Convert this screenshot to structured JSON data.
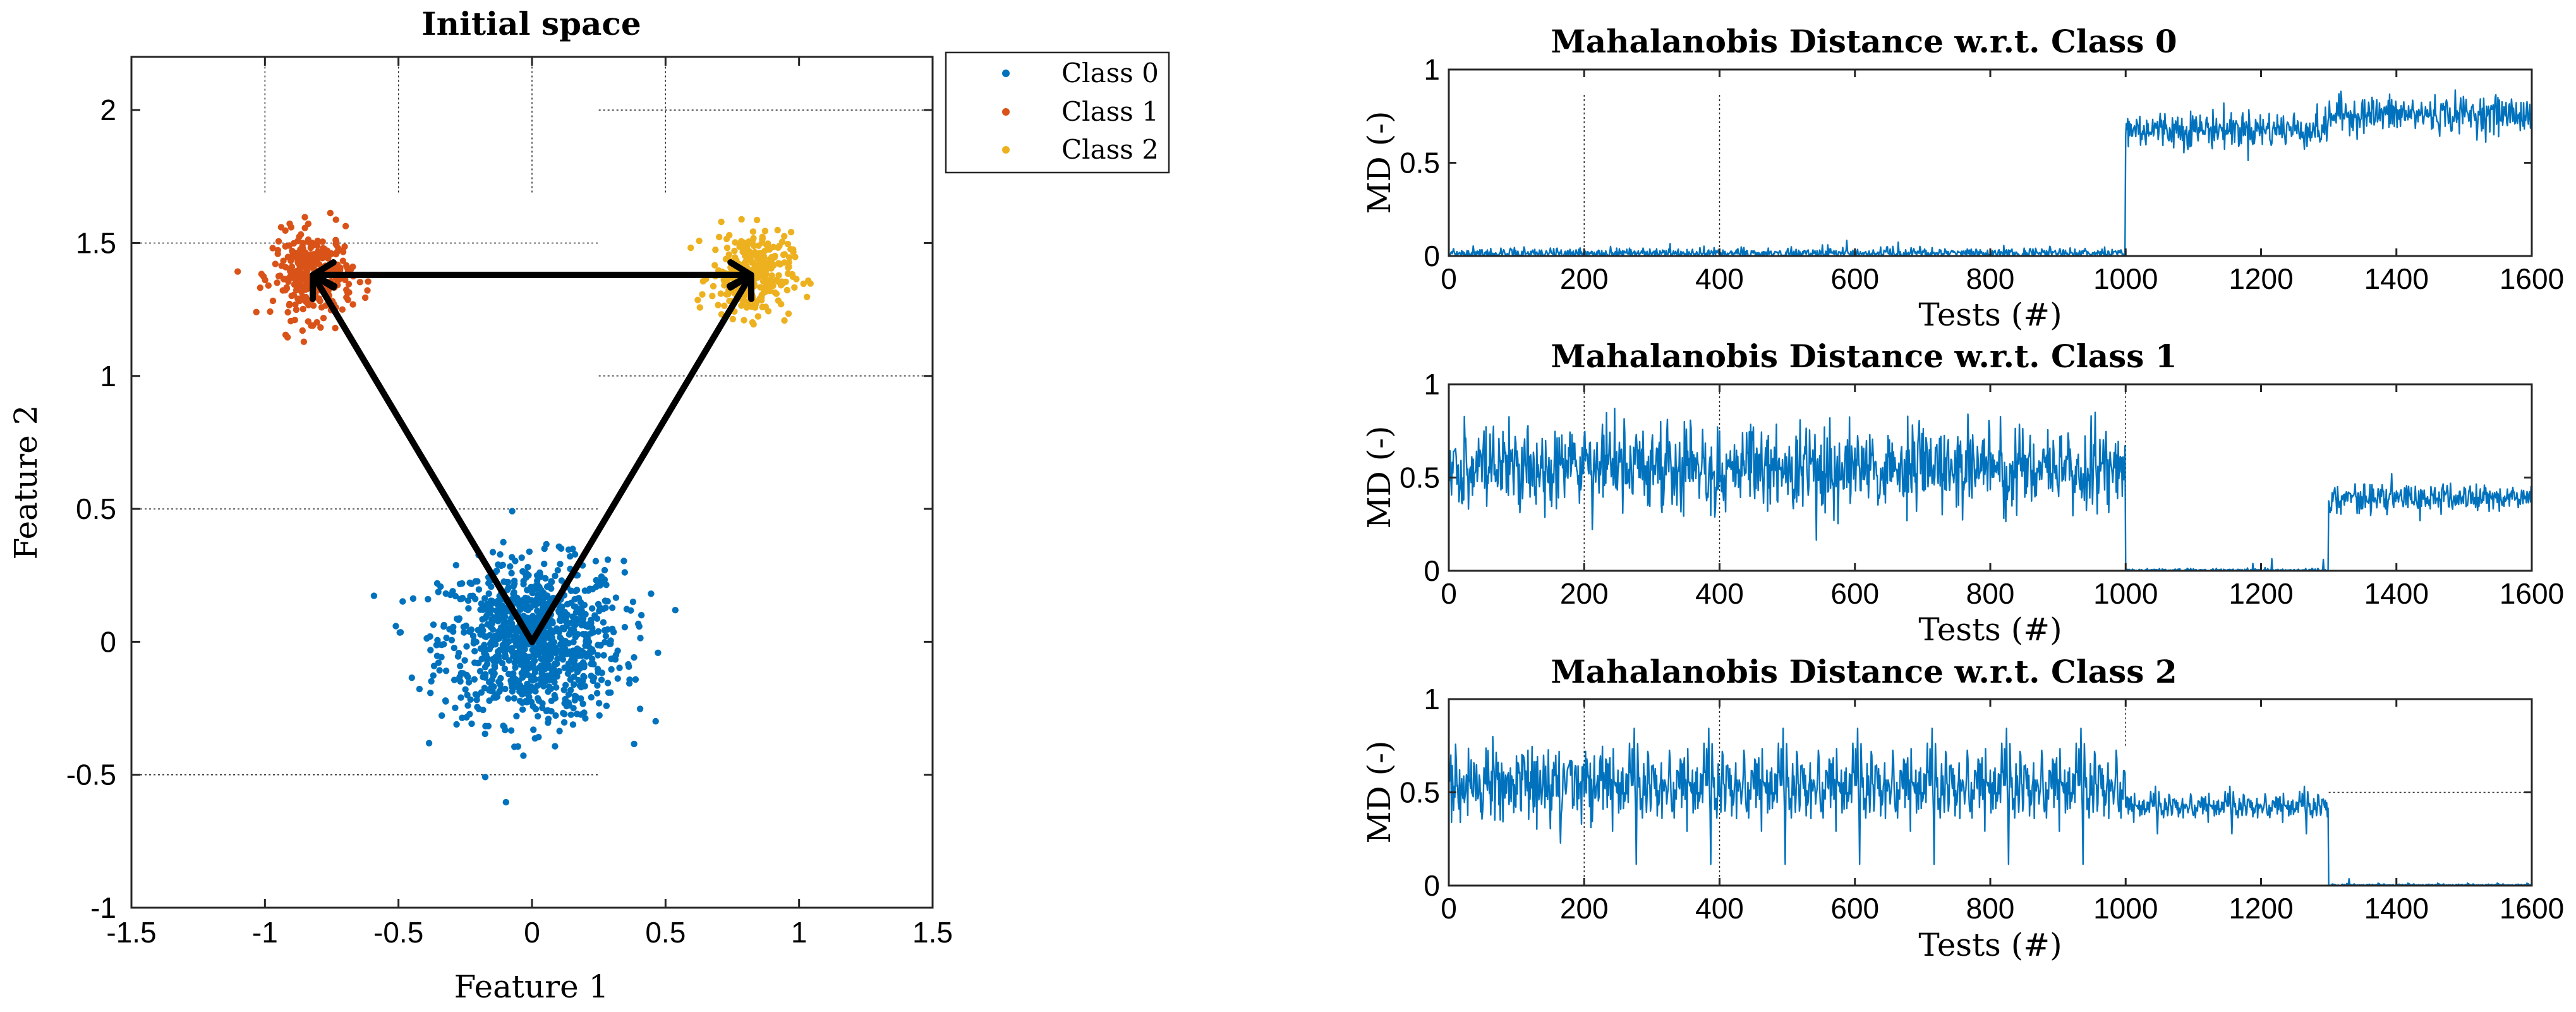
{
  "chart_data": [
    {
      "type": "scatter",
      "title": "Initial space",
      "xlabel": "Feature 1",
      "ylabel": "Feature 2",
      "xlim": [
        -1.5,
        1.5
      ],
      "ylim": [
        -1,
        2.2
      ],
      "xticks": [
        "-1.5",
        "-1",
        "-0.5",
        "0",
        "0.5",
        "1",
        "1.5"
      ],
      "yticks": [
        "-1",
        "-0.5",
        "0",
        "0.5",
        "1",
        "1.5",
        "2"
      ],
      "legend_location": "outside-top-right",
      "series": [
        {
          "name": "Class 0",
          "color": "#0072BD",
          "center": [
            0.0,
            0.0
          ],
          "spread": [
            0.17,
            0.15
          ],
          "count": 1000
        },
        {
          "name": "Class 1",
          "color": "#D95319",
          "center": [
            -0.82,
            1.38
          ],
          "spread": [
            0.075,
            0.08
          ],
          "count": 300
        },
        {
          "name": "Class 2",
          "color": "#EDB120",
          "center": [
            0.82,
            1.38
          ],
          "spread": [
            0.075,
            0.08
          ],
          "count": 300
        }
      ],
      "arrows": [
        {
          "from": [
            0.0,
            0.0
          ],
          "to": [
            -0.82,
            1.38
          ],
          "head": "end"
        },
        {
          "from": [
            0.0,
            0.0
          ],
          "to": [
            0.82,
            1.38
          ],
          "head": "end"
        },
        {
          "from": [
            -0.82,
            1.38
          ],
          "to": [
            0.82,
            1.38
          ],
          "head": "both"
        }
      ],
      "dotted_guides": {
        "horizontal": [
          {
            "y": 2.0,
            "x": [
              0.25,
              1.5
            ]
          },
          {
            "y": 1.5,
            "x": [
              -1.5,
              0.25
            ]
          },
          {
            "y": 1.0,
            "x": [
              0.25,
              1.5
            ]
          },
          {
            "y": 0.5,
            "x": [
              -1.5,
              0.25
            ]
          },
          {
            "y": -0.5,
            "x": [
              -1.5,
              0.25
            ]
          }
        ],
        "vertical": [
          {
            "x": -1.0,
            "y": [
              1.69,
              2.2
            ]
          },
          {
            "x": -0.5,
            "y": [
              1.69,
              2.2
            ]
          },
          {
            "x": 0.0,
            "y": [
              1.69,
              2.2
            ]
          },
          {
            "x": 0.5,
            "y": [
              1.69,
              2.2
            ]
          }
        ]
      }
    },
    {
      "type": "line",
      "title": "Mahalanobis Distance w.r.t.  Class 0",
      "xlabel": "Tests (#)",
      "ylabel": "MD (-)",
      "xlim": [
        0,
        1600
      ],
      "ylim": [
        0,
        1
      ],
      "xticks": [
        "0",
        "200",
        "400",
        "600",
        "800",
        "1000",
        "1200",
        "1400",
        "1600"
      ],
      "yticks": [
        "0",
        "0.5",
        "1"
      ],
      "segments": [
        {
          "x": [
            0,
            1000
          ],
          "mean": 0.02,
          "noise": 0.02
        },
        {
          "x": [
            1000,
            1300
          ],
          "mean": 0.68,
          "noise": 0.09
        },
        {
          "x": [
            1300,
            1600
          ],
          "mean": 0.76,
          "noise": 0.09
        }
      ],
      "dotted_guides": {
        "vertical": [
          {
            "x": 200,
            "y": [
              0,
              0.87
            ]
          },
          {
            "x": 400,
            "y": [
              0,
              0.87
            ]
          }
        ]
      }
    },
    {
      "type": "line",
      "title": "Mahalanobis Distance w.r.t.  Class 1",
      "xlabel": "Tests (#)",
      "ylabel": "MD (-)",
      "xlim": [
        0,
        1600
      ],
      "ylim": [
        0,
        1
      ],
      "xticks": [
        "0",
        "200",
        "400",
        "600",
        "800",
        "1000",
        "1200",
        "1400",
        "1600"
      ],
      "yticks": [
        "0",
        "0.5",
        "1"
      ],
      "segments": [
        {
          "x": [
            0,
            1000
          ],
          "mean": 0.55,
          "noise": 0.2
        },
        {
          "x": [
            1000,
            1300
          ],
          "mean": 0.01,
          "noise": 0.005
        },
        {
          "x": [
            1300,
            1600
          ],
          "mean": 0.39,
          "noise": 0.07
        }
      ],
      "dotted_guides": {
        "vertical": [
          {
            "x": 200,
            "y": [
              0,
              1
            ]
          },
          {
            "x": 400,
            "y": [
              0,
              1
            ]
          },
          {
            "x": 1000,
            "y": [
              0,
              1
            ]
          }
        ]
      }
    },
    {
      "type": "line",
      "title": "Mahalanobis Distance w.r.t.  Class 2",
      "xlabel": "Tests (#)",
      "ylabel": "MD (-)",
      "xlim": [
        0,
        1600
      ],
      "ylim": [
        0,
        1
      ],
      "xticks": [
        "0",
        "200",
        "400",
        "600",
        "800",
        "1000",
        "1200",
        "1400",
        "1600"
      ],
      "yticks": [
        "0",
        "0.5",
        "1"
      ],
      "segments": [
        {
          "x": [
            0,
            1000
          ],
          "mean": 0.55,
          "noise": 0.2
        },
        {
          "x": [
            1000,
            1300
          ],
          "mean": 0.43,
          "noise": 0.07
        },
        {
          "x": [
            1300,
            1600
          ],
          "mean": 0.01,
          "noise": 0.005
        }
      ],
      "dotted_guides": {
        "vertical": [
          {
            "x": 200,
            "y": [
              0,
              1
            ]
          },
          {
            "x": 400,
            "y": [
              0,
              1
            ]
          },
          {
            "x": 1000,
            "y": [
              0.75,
              1
            ]
          }
        ],
        "horizontal": [
          {
            "y": 0.5,
            "x": [
              1300,
              1600
            ]
          }
        ]
      }
    }
  ]
}
